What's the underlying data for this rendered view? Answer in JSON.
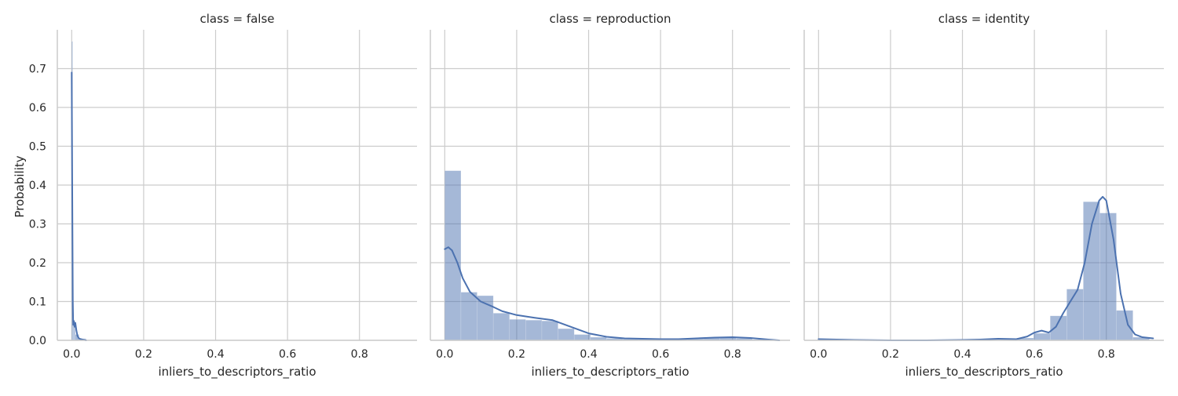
{
  "chart_data": {
    "type": "histogram",
    "style": "facet-grid-histogram-with-kde",
    "ylabel": "Probability",
    "xlabel": "inliers_to_descriptors_ratio",
    "ylim": [
      0,
      0.8
    ],
    "xlim": [
      -0.04,
      0.96
    ],
    "xticks": [
      0.0,
      0.2,
      0.4,
      0.6,
      0.8
    ],
    "xtick_labels": [
      "0.0",
      "0.2",
      "0.4",
      "0.6",
      "0.8"
    ],
    "yticks": [
      0.0,
      0.1,
      0.2,
      0.3,
      0.4,
      0.5,
      0.6,
      0.7
    ],
    "ytick_labels": [
      "0.0",
      "0.1",
      "0.2",
      "0.3",
      "0.4",
      "0.5",
      "0.6",
      "0.7"
    ],
    "grid": true,
    "colors": {
      "bar": "#4c72b0",
      "line": "#4c72b0",
      "grid": "#cccccc",
      "axis": "#cccccc"
    },
    "panels": [
      {
        "title": "class = false",
        "bins": [
          {
            "x0": 0.0,
            "x1": 0.0025,
            "value": 0.77
          },
          {
            "x0": 0.0025,
            "x1": 0.005,
            "value": 0.05
          },
          {
            "x0": 0.005,
            "x1": 0.0075,
            "value": 0.04
          },
          {
            "x0": 0.0075,
            "x1": 0.01,
            "value": 0.045
          },
          {
            "x0": 0.01,
            "x1": 0.02,
            "value": 0.015
          },
          {
            "x0": 0.02,
            "x1": 0.04,
            "value": 0.004
          }
        ],
        "kde": {
          "x": [
            0.0,
            0.0015,
            0.003,
            0.004,
            0.006,
            0.008,
            0.01,
            0.013,
            0.016,
            0.02,
            0.025,
            0.03,
            0.04
          ],
          "y": [
            0.69,
            0.38,
            0.1,
            0.04,
            0.05,
            0.035,
            0.045,
            0.025,
            0.012,
            0.005,
            0.003,
            0.002,
            0.0
          ]
        }
      },
      {
        "title": "class = reproduction",
        "bins": [
          {
            "x0": 0.0,
            "x1": 0.045,
            "value": 0.437
          },
          {
            "x0": 0.045,
            "x1": 0.09,
            "value": 0.124
          },
          {
            "x0": 0.09,
            "x1": 0.135,
            "value": 0.115
          },
          {
            "x0": 0.135,
            "x1": 0.18,
            "value": 0.07
          },
          {
            "x0": 0.18,
            "x1": 0.225,
            "value": 0.054
          },
          {
            "x0": 0.225,
            "x1": 0.27,
            "value": 0.052
          },
          {
            "x0": 0.27,
            "x1": 0.315,
            "value": 0.05
          },
          {
            "x0": 0.315,
            "x1": 0.36,
            "value": 0.03
          },
          {
            "x0": 0.36,
            "x1": 0.405,
            "value": 0.015
          },
          {
            "x0": 0.405,
            "x1": 0.45,
            "value": 0.008
          },
          {
            "x0": 0.45,
            "x1": 0.495,
            "value": 0.005
          },
          {
            "x0": 0.495,
            "x1": 0.54,
            "value": 0.003
          },
          {
            "x0": 0.54,
            "x1": 0.585,
            "value": 0.004
          },
          {
            "x0": 0.585,
            "x1": 0.63,
            "value": 0.003
          },
          {
            "x0": 0.63,
            "x1": 0.675,
            "value": 0.003
          },
          {
            "x0": 0.675,
            "x1": 0.72,
            "value": 0.004
          },
          {
            "x0": 0.72,
            "x1": 0.765,
            "value": 0.006
          },
          {
            "x0": 0.765,
            "x1": 0.81,
            "value": 0.008
          },
          {
            "x0": 0.81,
            "x1": 0.855,
            "value": 0.005
          },
          {
            "x0": 0.855,
            "x1": 0.9,
            "value": 0.002
          }
        ],
        "kde": {
          "x": [
            0.0,
            0.01,
            0.02,
            0.035,
            0.05,
            0.07,
            0.1,
            0.13,
            0.16,
            0.2,
            0.25,
            0.3,
            0.35,
            0.4,
            0.45,
            0.5,
            0.55,
            0.6,
            0.65,
            0.7,
            0.75,
            0.8,
            0.85,
            0.9,
            0.93
          ],
          "y": [
            0.235,
            0.24,
            0.232,
            0.2,
            0.16,
            0.125,
            0.1,
            0.088,
            0.075,
            0.065,
            0.058,
            0.052,
            0.035,
            0.018,
            0.009,
            0.005,
            0.004,
            0.003,
            0.003,
            0.005,
            0.007,
            0.008,
            0.006,
            0.002,
            0.0
          ]
        }
      },
      {
        "title": "class = identity",
        "bins": [
          {
            "x0": 0.0,
            "x1": 0.046,
            "value": 0.003
          },
          {
            "x0": 0.046,
            "x1": 0.092,
            "value": 0.001
          },
          {
            "x0": 0.092,
            "x1": 0.138,
            "value": 0.001
          },
          {
            "x0": 0.138,
            "x1": 0.184,
            "value": 0.0
          },
          {
            "x0": 0.184,
            "x1": 0.23,
            "value": 0.0
          },
          {
            "x0": 0.23,
            "x1": 0.276,
            "value": 0.0
          },
          {
            "x0": 0.276,
            "x1": 0.322,
            "value": 0.0
          },
          {
            "x0": 0.322,
            "x1": 0.368,
            "value": 0.0
          },
          {
            "x0": 0.368,
            "x1": 0.414,
            "value": 0.0
          },
          {
            "x0": 0.414,
            "x1": 0.46,
            "value": 0.001
          },
          {
            "x0": 0.46,
            "x1": 0.506,
            "value": 0.002
          },
          {
            "x0": 0.506,
            "x1": 0.552,
            "value": 0.002
          },
          {
            "x0": 0.552,
            "x1": 0.598,
            "value": 0.006
          },
          {
            "x0": 0.598,
            "x1": 0.644,
            "value": 0.018
          },
          {
            "x0": 0.644,
            "x1": 0.69,
            "value": 0.063
          },
          {
            "x0": 0.69,
            "x1": 0.736,
            "value": 0.132
          },
          {
            "x0": 0.736,
            "x1": 0.782,
            "value": 0.357
          },
          {
            "x0": 0.782,
            "x1": 0.828,
            "value": 0.328
          },
          {
            "x0": 0.828,
            "x1": 0.874,
            "value": 0.077
          },
          {
            "x0": 0.874,
            "x1": 0.92,
            "value": 0.008
          }
        ],
        "kde": {
          "x": [
            0.0,
            0.05,
            0.1,
            0.2,
            0.3,
            0.4,
            0.45,
            0.5,
            0.55,
            0.58,
            0.6,
            0.62,
            0.64,
            0.66,
            0.68,
            0.7,
            0.72,
            0.74,
            0.76,
            0.78,
            0.79,
            0.8,
            0.82,
            0.84,
            0.86,
            0.88,
            0.9,
            0.93
          ],
          "y": [
            0.003,
            0.002,
            0.001,
            0.0,
            0.0,
            0.001,
            0.002,
            0.004,
            0.003,
            0.01,
            0.02,
            0.025,
            0.02,
            0.035,
            0.07,
            0.1,
            0.13,
            0.2,
            0.3,
            0.36,
            0.37,
            0.36,
            0.26,
            0.12,
            0.04,
            0.015,
            0.008,
            0.005
          ]
        }
      }
    ]
  }
}
